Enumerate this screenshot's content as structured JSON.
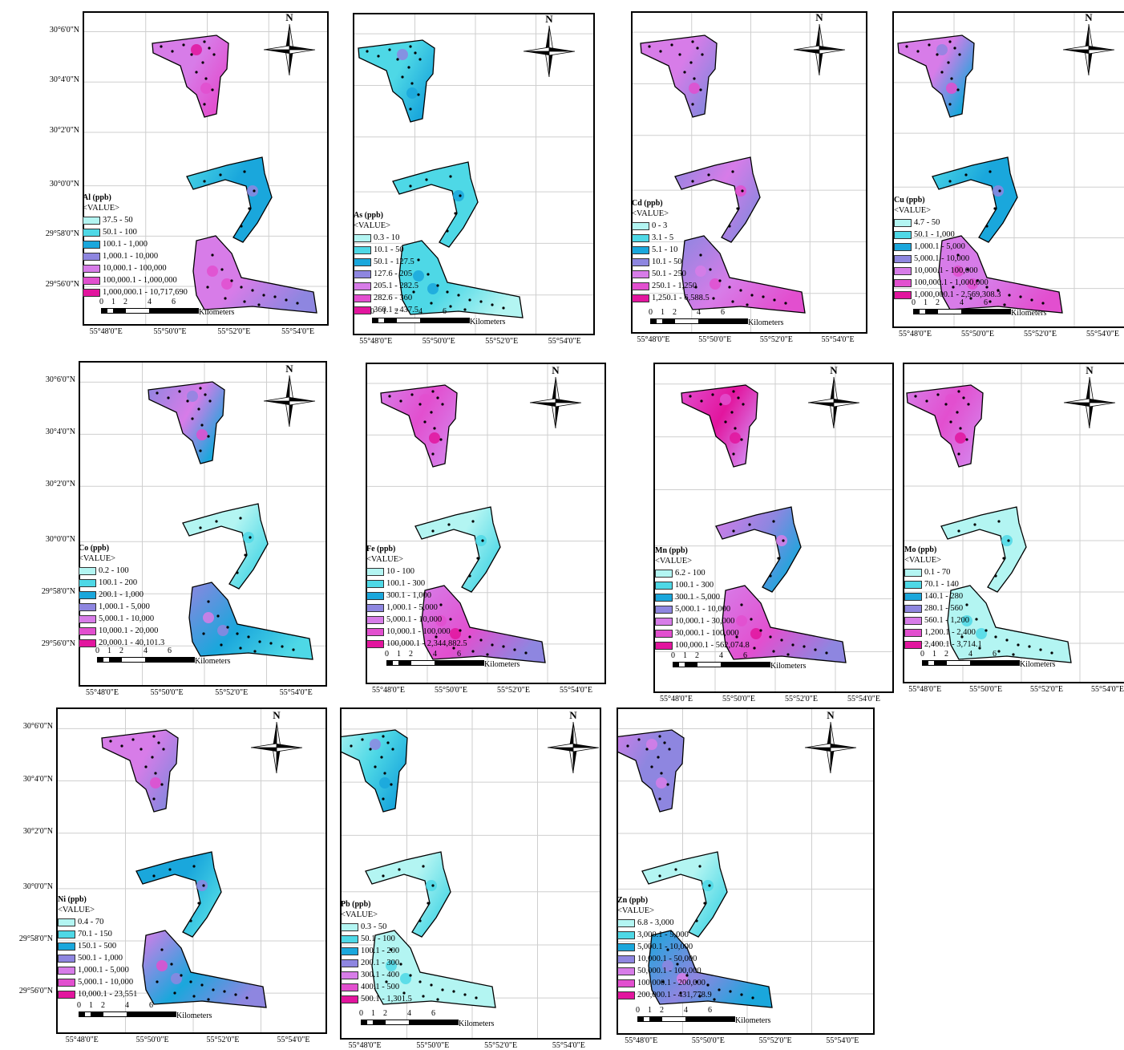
{
  "common": {
    "value_header": "<VALUE>",
    "north_label": "N",
    "scale_label": "Kilometers",
    "scale_ticks": [
      "0",
      "1",
      "2",
      "4",
      "6"
    ],
    "lat_labels": [
      "30°6'0\"N",
      "30°4'0\"N",
      "30°2'0\"N",
      "30°0'0\"N",
      "29°58'0\"N",
      "29°56'0\"N"
    ],
    "lon_labels": [
      "55°48'0\"E",
      "55°50'0\"E",
      "55°52'0\"E",
      "55°54'0\"E"
    ],
    "colors": [
      "#b3f5f2",
      "#4ed8e6",
      "#1aa7dc",
      "#8e86e0",
      "#d77ce8",
      "#e24fcf",
      "#e2159e"
    ]
  },
  "maps": [
    {
      "element": "Al",
      "title": "Al (ppb)",
      "classes": [
        "37.5 - 50",
        "50.1 - 100",
        "100.1 - 1,000",
        "1,000.1 - 10,000",
        "10,000.1 - 100,000",
        "100,000.1 - 1,000,000",
        "1,000,000.1 - 10,717,690"
      ]
    },
    {
      "element": "As",
      "title": "As (ppb)",
      "classes": [
        "0.3 - 10",
        "10.1 - 50",
        "50.1 - 127.5",
        "127.6 - 205",
        "205.1 - 282.5",
        "282.6 - 360",
        "360.1 - 437.5"
      ]
    },
    {
      "element": "Cd",
      "title": "Cd (ppb)",
      "classes": [
        "0 - 3",
        "3.1 - 5",
        "5.1 - 10",
        "10.1 - 50",
        "50.1 - 250",
        "250.1 - 1,250",
        "1,250.1 - 6,588.5"
      ]
    },
    {
      "element": "Cu",
      "title": "Cu (ppb)",
      "classes": [
        "4.7 - 50",
        "50.1 - 1,000",
        "1,000.1 - 5,000",
        "5,000.1 - 10,000",
        "10,000.1 - 100,000",
        "100,000.1 - 1,000,000",
        "1,000,000.1 - 2,569,308.3"
      ]
    },
    {
      "element": "Co",
      "title": "Co (ppb)",
      "classes": [
        "0.2 - 100",
        "100.1 - 200",
        "200.1 - 1,000",
        "1,000.1 - 5,000",
        "5,000.1 - 10,000",
        "10,000.1 - 20,000",
        "20,000.1 - 40,101.3"
      ]
    },
    {
      "element": "Fe",
      "title": "Fe (ppb)",
      "classes": [
        "10 - 100",
        "100.1 - 300",
        "300.1 - 1,000",
        "1,000.1 - 5,000",
        "5,000.1 - 10,000",
        "10,000.1 - 100,000",
        "100,000.1 - 2,344,882.5"
      ]
    },
    {
      "element": "Mn",
      "title": "Mn (ppb)",
      "classes": [
        "6.2 - 100",
        "100.1 - 300",
        "300.1 - 5,000",
        "5,000.1 - 10,000",
        "10,000.1 - 30,000",
        "30,000.1 - 100,000",
        "100,000.1 - 562,074.8"
      ]
    },
    {
      "element": "Mo",
      "title": "Mo (ppb)",
      "classes": [
        "0.1 - 70",
        "70.1 - 140",
        "140.1 - 280",
        "280.1 - 560",
        "560.1 - 1,200",
        "1,200.1 - 2,400",
        "2,400.1 - 3,714.1"
      ]
    },
    {
      "element": "Ni",
      "title": "Ni (ppb)",
      "classes": [
        "0.4 - 70",
        "70.1 - 150",
        "150.1 - 500",
        "500.1 - 1,000",
        "1,000.1 - 5,000",
        "5,000.1 - 10,000",
        "10,000.1 - 23,551"
      ]
    },
    {
      "element": "Pb",
      "title": "Pb (ppb)",
      "classes": [
        "0.3 - 50",
        "50.1 - 100",
        "100.1 - 200",
        "200.1 - 300",
        "300.1 - 400",
        "400.1 - 500",
        "500.1 - 1,301.5"
      ]
    },
    {
      "element": "Zn",
      "title": "Zn (ppb)",
      "classes": [
        "6.8 - 3,000",
        "3,000.1 - 5,000",
        "5,000.1 - 10,000",
        "10,000.1 - 50,000",
        "50,000.1 - 100,000",
        "100,000.1 - 200,000",
        "200,000.1 - 431,778.9"
      ]
    }
  ],
  "fills": {
    "Al": {
      "north": [
        4,
        4,
        5
      ],
      "mid": [
        1,
        2,
        2
      ],
      "south": [
        4,
        4,
        3
      ]
    },
    "As": {
      "north": [
        1,
        1,
        2
      ],
      "mid": [
        1,
        1,
        1
      ],
      "south": [
        1,
        1,
        0
      ]
    },
    "Cd": {
      "north": [
        4,
        4,
        3
      ],
      "mid": [
        3,
        4,
        3
      ],
      "south": [
        3,
        4,
        5
      ]
    },
    "Cu": {
      "north": [
        4,
        4,
        2
      ],
      "mid": [
        1,
        2,
        2
      ],
      "south": [
        4,
        4,
        5
      ]
    },
    "Co": {
      "north": [
        3,
        4,
        2
      ],
      "mid": [
        0,
        0,
        1
      ],
      "south": [
        3,
        2,
        1
      ]
    },
    "Fe": {
      "north": [
        4,
        5,
        4
      ],
      "mid": [
        0,
        0,
        1
      ],
      "south": [
        4,
        5,
        3
      ]
    },
    "Mn": {
      "north": [
        5,
        6,
        4
      ],
      "mid": [
        4,
        3,
        2
      ],
      "south": [
        4,
        5,
        3
      ]
    },
    "Mo": {
      "north": [
        4,
        5,
        4
      ],
      "mid": [
        0,
        0,
        0
      ],
      "south": [
        0,
        0,
        0
      ]
    },
    "Ni": {
      "north": [
        4,
        4,
        3
      ],
      "mid": [
        2,
        2,
        1
      ],
      "south": [
        4,
        2,
        3
      ]
    },
    "Pb": {
      "north": [
        0,
        1,
        2
      ],
      "mid": [
        0,
        0,
        1
      ],
      "south": [
        0,
        0,
        0
      ]
    },
    "Zn": {
      "north": [
        4,
        3,
        3
      ],
      "mid": [
        0,
        0,
        1
      ],
      "south": [
        2,
        3,
        2
      ]
    }
  }
}
